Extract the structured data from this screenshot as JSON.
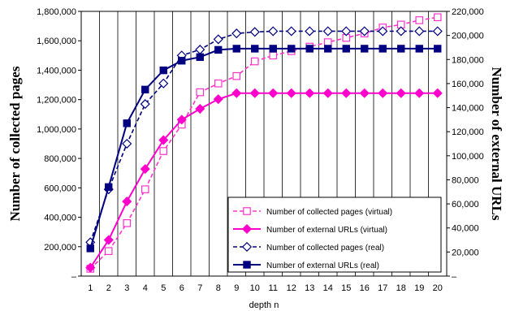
{
  "chart_data": {
    "type": "line",
    "xlabel": "depth n",
    "ylabel_left": "Number of collected pages",
    "ylabel_right": "Number of external URLs",
    "x": [
      1,
      2,
      3,
      4,
      5,
      6,
      7,
      8,
      9,
      10,
      11,
      12,
      13,
      14,
      15,
      16,
      17,
      18,
      19,
      20
    ],
    "ylim_left": [
      0,
      1800000
    ],
    "ylim_right": [
      0,
      220000
    ],
    "yticks_left": [
      "–",
      "200,000",
      "400,000",
      "600,000",
      "800,000",
      "1,000,000",
      "1,200,000",
      "1,400,000",
      "1,600,000",
      "1,800,000"
    ],
    "yticks_right": [
      "–",
      "20,000",
      "40,000",
      "60,000",
      "80,000",
      "100,000",
      "120,000",
      "140,000",
      "160,000",
      "180,000",
      "200,000",
      "220,000"
    ],
    "grid": "vertical",
    "legend_position": "bottom-right",
    "series": [
      {
        "name": "Number of collected pages (virtual)",
        "axis": "left",
        "color": "#ff33cc",
        "line": "dashed",
        "marker": "square-open",
        "values": [
          50000,
          170000,
          360000,
          590000,
          850000,
          1030000,
          1250000,
          1310000,
          1360000,
          1460000,
          1500000,
          1530000,
          1560000,
          1590000,
          1620000,
          1650000,
          1690000,
          1710000,
          1740000,
          1760000
        ]
      },
      {
        "name": "Number of external URLs (virtual)",
        "axis": "right",
        "color": "#ff00cc",
        "line": "solid",
        "marker": "diamond-filled",
        "values": [
          7000,
          30000,
          62000,
          89000,
          113000,
          130000,
          139000,
          147000,
          152000,
          152000,
          152000,
          152000,
          152000,
          152000,
          152000,
          152000,
          152000,
          152000,
          152000,
          152000
        ]
      },
      {
        "name": "Number of collected pages (real)",
        "axis": "left",
        "color": "#000080",
        "line": "dashed",
        "marker": "diamond-open",
        "values": [
          230000,
          590000,
          900000,
          1170000,
          1310000,
          1500000,
          1540000,
          1610000,
          1650000,
          1660000,
          1665000,
          1665000,
          1665000,
          1665000,
          1665000,
          1665000,
          1665000,
          1665000,
          1665000,
          1665000
        ]
      },
      {
        "name": "Number of external URLs (real)",
        "axis": "right",
        "color": "#000080",
        "line": "solid",
        "marker": "square-filled",
        "values": [
          23000,
          74000,
          127000,
          155000,
          171000,
          179000,
          182000,
          188000,
          189000,
          189000,
          189000,
          189000,
          189000,
          189000,
          189000,
          189000,
          189000,
          189000,
          189000,
          189000
        ]
      }
    ]
  }
}
